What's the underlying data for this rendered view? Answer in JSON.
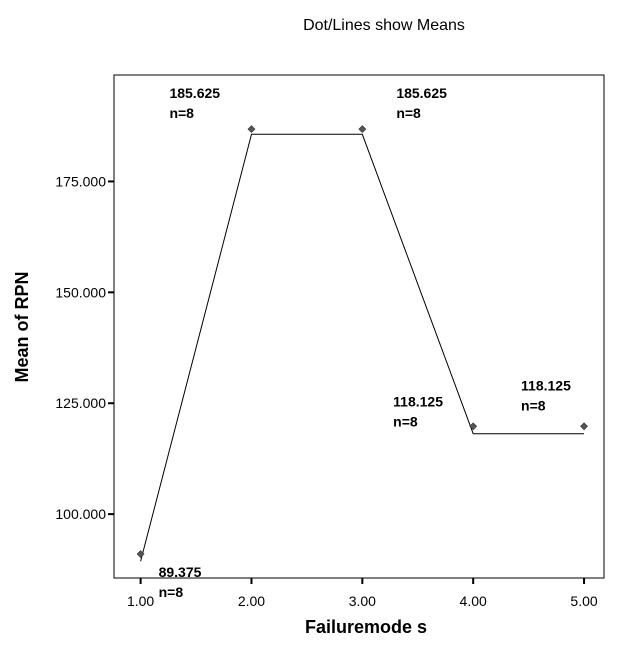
{
  "chart_data": {
    "type": "line",
    "title": "Dot/Lines show Means",
    "xlabel": "Failuremode s",
    "ylabel": "Mean of RPN",
    "x": [
      1,
      2,
      3,
      4,
      5
    ],
    "x_tick_labels": [
      "1.00",
      "2.00",
      "3.00",
      "4.00",
      "5.00"
    ],
    "y_ticks": [
      100,
      125,
      150,
      175
    ],
    "y_tick_labels": [
      "100.000",
      "125.000",
      "150.000",
      "175.000"
    ],
    "xlim": [
      0.76,
      5.18
    ],
    "ylim": [
      85.6,
      199
    ],
    "series": [
      {
        "values": [
          89.375,
          185.625,
          185.625,
          118.125,
          118.125
        ],
        "points": [
          91.0,
          186.8,
          186.8,
          119.8,
          119.8
        ],
        "labels": [
          {
            "value": "89.375",
            "n": "n=8"
          },
          {
            "value": "185.625",
            "n": "n=8"
          },
          {
            "value": "185.625",
            "n": "n=8"
          },
          {
            "value": "118.125",
            "n": "n=8"
          },
          {
            "value": "118.125",
            "n": "n=8"
          }
        ]
      }
    ],
    "grid": false,
    "colors": {
      "line": "#000000",
      "marker": "#555555",
      "frame": "#000000"
    }
  }
}
